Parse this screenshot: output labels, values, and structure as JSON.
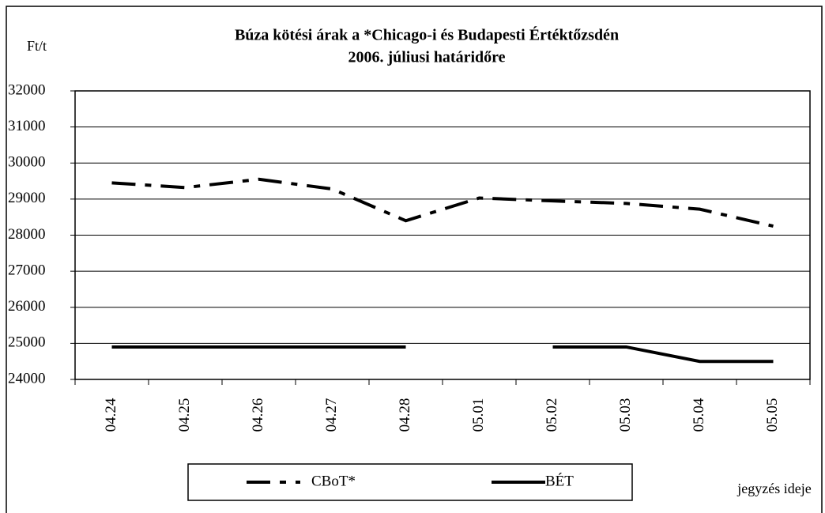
{
  "chart_data": {
    "type": "line",
    "title": "Búza kötési árak a *Chicago-i és Budapesti Értéktőzsdén",
    "subtitle": "2006. júliusi határidőre",
    "y_label": "Ft/t",
    "x_label": "jegyzés ideje",
    "categories": [
      "04.24",
      "04.25",
      "04.26",
      "04.27",
      "04.28",
      "05.01",
      "05.02",
      "05.03",
      "05.04",
      "05.05"
    ],
    "series": [
      {
        "name": "CBoT*",
        "color": "#000000",
        "dash": "dash-dot",
        "values": [
          29450,
          29320,
          29550,
          29280,
          28400,
          29030,
          28950,
          28880,
          28720,
          28250
        ]
      },
      {
        "name": "BÉT",
        "color": "#000000",
        "dash": "solid",
        "values": [
          24900,
          24900,
          24900,
          24900,
          24900,
          null,
          24900,
          24900,
          24500,
          24500
        ]
      }
    ],
    "ylim": [
      24000,
      32000
    ],
    "yticks": [
      24000,
      25000,
      26000,
      27000,
      28000,
      29000,
      30000,
      31000,
      32000
    ],
    "grid": true,
    "legend": "bottom"
  }
}
